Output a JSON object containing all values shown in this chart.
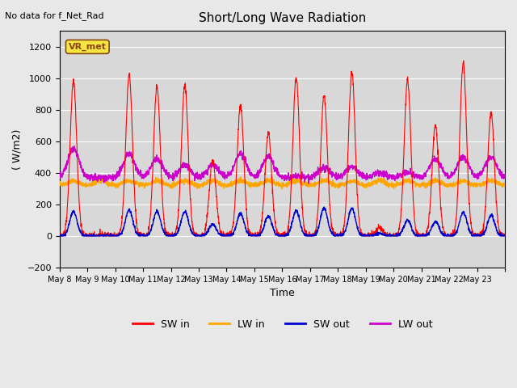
{
  "title": "Short/Long Wave Radiation",
  "ylabel": "( W/m2)",
  "xlabel": "Time",
  "ylim": [
    -200,
    1300
  ],
  "yticks": [
    -200,
    0,
    200,
    400,
    600,
    800,
    1000,
    1200
  ],
  "background_color": "#e8e8e8",
  "plot_bg_color": "#d8d8d8",
  "subtitle": "No data for f_Net_Rad",
  "legend_label": "VR_met",
  "colors": {
    "SW_in": "#ff0000",
    "LW_in": "#ffa500",
    "SW_out": "#0000cc",
    "LW_out": "#cc00cc"
  },
  "n_days": 16,
  "x_tick_positions": [
    0,
    1,
    2,
    3,
    4,
    5,
    6,
    7,
    8,
    9,
    10,
    11,
    12,
    13,
    14,
    15,
    16
  ],
  "x_tick_labels": [
    "May 8",
    "May 9",
    "May 10",
    "May 11",
    "May 12",
    "May 13",
    "May 14",
    "May 15",
    "May 16",
    "May 17",
    "May 18",
    "May 19",
    "May 20",
    "May 21",
    "May 22",
    "May 23",
    ""
  ],
  "sw_in_peaks": [
    980,
    5,
    1020,
    950,
    960,
    480,
    830,
    650,
    1000,
    890,
    1040,
    50,
    990,
    700,
    1100,
    780
  ],
  "sw_out_peaks": [
    155,
    2,
    165,
    155,
    155,
    75,
    140,
    125,
    160,
    175,
    175,
    15,
    100,
    90,
    150,
    130
  ],
  "lw_in_base": 320,
  "lw_in_bump": 30,
  "lw_out_peaks": [
    550,
    370,
    520,
    490,
    450,
    450,
    520,
    500,
    380,
    430,
    440,
    400,
    400,
    490,
    500,
    500
  ],
  "lw_out_base": 370
}
